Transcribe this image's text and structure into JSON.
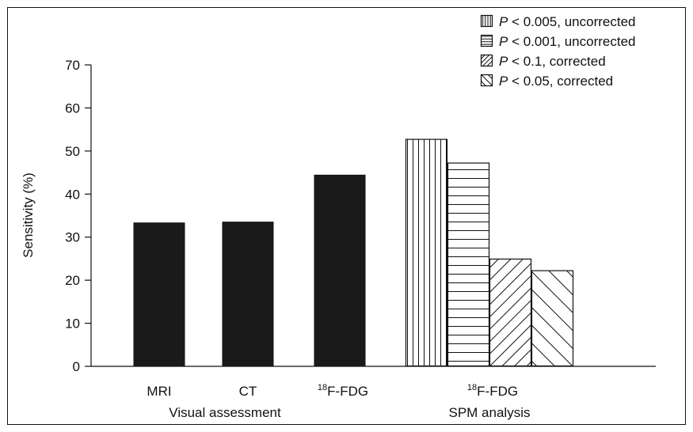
{
  "chart_data": {
    "type": "bar",
    "ylabel": "Sensitivity (%)",
    "ylim": [
      0,
      70
    ],
    "yticks": [
      0,
      10,
      20,
      30,
      40,
      50,
      60,
      70
    ],
    "grid": false,
    "legend_position": "top-right",
    "groups": [
      {
        "name": "Visual assessment",
        "bars": [
          {
            "label": "MRI",
            "value": 33.3,
            "fill": "solid"
          },
          {
            "label": "CT",
            "value": 33.5,
            "fill": "solid"
          },
          {
            "label_sup": "18",
            "label_main": "F-FDG",
            "value": 44.4,
            "fill": "solid"
          }
        ]
      },
      {
        "name": "SPM analysis",
        "label_sup": "18",
        "label_main": "F-FDG",
        "bars": [
          {
            "series": 0,
            "value": 52.8,
            "fill": "vertical"
          },
          {
            "series": 1,
            "value": 47.3,
            "fill": "horizontal"
          },
          {
            "series": 2,
            "value": 25.0,
            "fill": "diag-down"
          },
          {
            "series": 3,
            "value": 22.3,
            "fill": "diag-up"
          }
        ]
      }
    ],
    "series": [
      {
        "prefix": "P",
        "rest": " < 0.005, uncorrected",
        "pattern": "vertical"
      },
      {
        "prefix": "P",
        "rest": " < 0.001, uncorrected",
        "pattern": "horizontal"
      },
      {
        "prefix": "P",
        "rest": " < 0.1, corrected",
        "pattern": "diag-down"
      },
      {
        "prefix": "P",
        "rest": " < 0.05, corrected",
        "pattern": "diag-up"
      }
    ],
    "colors": {
      "solid": "#1a1a1a",
      "line": "#111111",
      "background": "#ffffff"
    }
  }
}
